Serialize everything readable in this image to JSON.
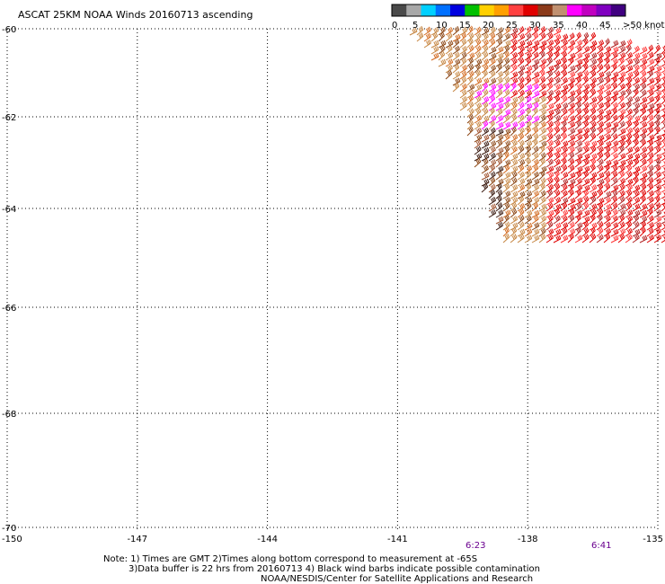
{
  "title": "ASCAT 25KM NOAA Winds 20160713 ascending",
  "colorbar": {
    "labels": [
      "0",
      "5",
      "10",
      "15",
      "20",
      "25",
      "30",
      "35",
      "40",
      "45",
      ">50 knots"
    ],
    "colors": [
      "#4a4a4a",
      "#a8a8a8",
      "#00d0ff",
      "#0070ff",
      "#0000e0",
      "#00c000",
      "#ffd000",
      "#ffa000",
      "#ff4040",
      "#e00000",
      "#8b3a1a",
      "#c09070",
      "#ff00ff",
      "#c000c0",
      "#8000c0",
      "#400080"
    ]
  },
  "axes": {
    "lat_labels": [
      "-60",
      "-62",
      "-64",
      "-66",
      "-68",
      "-70"
    ],
    "lat_values": [
      -60,
      -62,
      -64,
      -66,
      -68,
      -70
    ],
    "lon_labels": [
      "-150",
      "-147",
      "-144",
      "-141",
      "-138",
      "-135"
    ],
    "lon_values": [
      -150,
      -147,
      -144,
      -141,
      -138,
      -135
    ]
  },
  "times": [
    {
      "label": "6:23",
      "lon": -139.2
    },
    {
      "label": "6:41",
      "lon": -136.3
    }
  ],
  "note": {
    "line1": "Note: 1) Times are GMT 2)Times along bottom correspond to measurement at -65S",
    "line2": "3)Data buffer is 22 hrs from 20160713 4) Black wind barbs indicate possible contamination",
    "line3": "NOAA/NESDIS/Center for Satellite Applications and Research"
  },
  "swath": {
    "polygon_lonlat": [
      [
        -140.8,
        -60.1
      ],
      [
        -137.6,
        -60.1
      ],
      [
        -134.6,
        -60.6
      ],
      [
        -134.6,
        -64.7
      ],
      [
        -138.5,
        -64.8
      ],
      [
        -138.9,
        -64.2
      ],
      [
        -139.2,
        -63.2
      ],
      [
        -139.6,
        -61.8
      ],
      [
        -140.0,
        -61.0
      ]
    ],
    "barb_colors": [
      "#8b4513",
      "#a0522d",
      "#c68642",
      "#d2691e",
      "#e00000",
      "#ff3030",
      "#b22222",
      "#3a1a10",
      "#ff00ff"
    ]
  }
}
